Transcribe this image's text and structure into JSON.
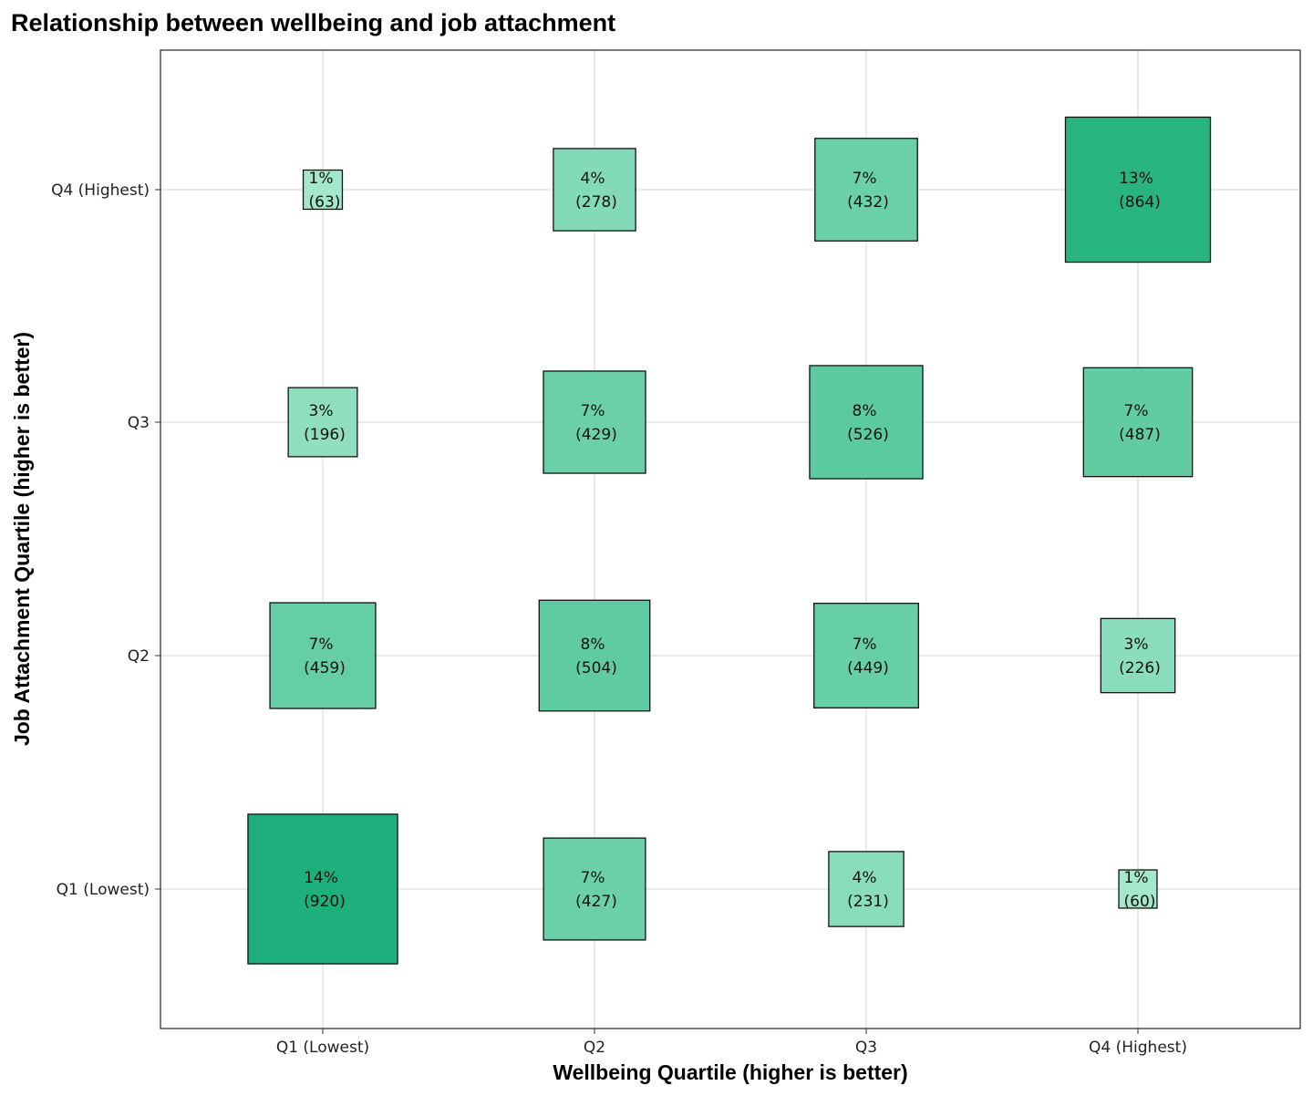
{
  "chart_data": {
    "type": "heatmap",
    "title": "Relationship between wellbeing and job attachment",
    "xlabel": "Wellbeing Quartile (higher is better)",
    "ylabel": "Job Attachment Quartile (higher is better)",
    "x_categories": [
      "Q1 (Lowest)",
      "Q2",
      "Q3",
      "Q4 (Highest)"
    ],
    "y_categories": [
      "Q1 (Lowest)",
      "Q2",
      "Q3",
      "Q4 (Highest)"
    ],
    "grid": true,
    "encoding": "square size and fill intensity proportional to count",
    "color_low": "#a4e8cc",
    "color_high": "#1eb07c",
    "cells": [
      {
        "x": "Q1 (Lowest)",
        "y": "Q4 (Highest)",
        "pct": "1%",
        "count": 63
      },
      {
        "x": "Q2",
        "y": "Q4 (Highest)",
        "pct": "4%",
        "count": 278
      },
      {
        "x": "Q3",
        "y": "Q4 (Highest)",
        "pct": "7%",
        "count": 432
      },
      {
        "x": "Q4 (Highest)",
        "y": "Q4 (Highest)",
        "pct": "13%",
        "count": 864
      },
      {
        "x": "Q1 (Lowest)",
        "y": "Q3",
        "pct": "3%",
        "count": 196
      },
      {
        "x": "Q2",
        "y": "Q3",
        "pct": "7%",
        "count": 429
      },
      {
        "x": "Q3",
        "y": "Q3",
        "pct": "8%",
        "count": 526
      },
      {
        "x": "Q4 (Highest)",
        "y": "Q3",
        "pct": "7%",
        "count": 487
      },
      {
        "x": "Q1 (Lowest)",
        "y": "Q2",
        "pct": "7%",
        "count": 459
      },
      {
        "x": "Q2",
        "y": "Q2",
        "pct": "8%",
        "count": 504
      },
      {
        "x": "Q3",
        "y": "Q2",
        "pct": "7%",
        "count": 449
      },
      {
        "x": "Q4 (Highest)",
        "y": "Q2",
        "pct": "3%",
        "count": 226
      },
      {
        "x": "Q1 (Lowest)",
        "y": "Q1 (Lowest)",
        "pct": "14%",
        "count": 920
      },
      {
        "x": "Q2",
        "y": "Q1 (Lowest)",
        "pct": "7%",
        "count": 427
      },
      {
        "x": "Q3",
        "y": "Q1 (Lowest)",
        "pct": "4%",
        "count": 231
      },
      {
        "x": "Q4 (Highest)",
        "y": "Q1 (Lowest)",
        "pct": "1%",
        "count": 60
      }
    ]
  }
}
